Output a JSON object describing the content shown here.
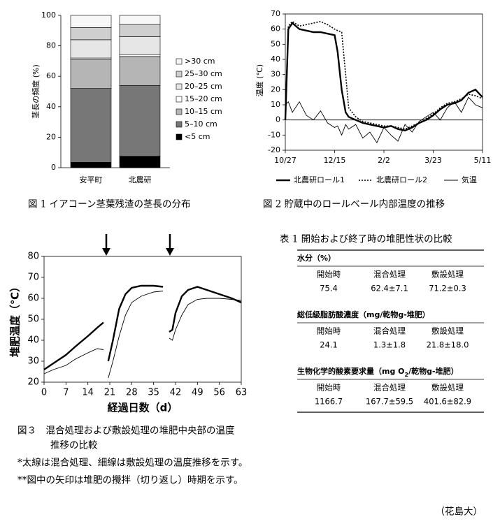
{
  "chart_data": [
    {
      "type": "bar",
      "stacked": true,
      "categories": [
        "安平町",
        "北農研"
      ],
      "y_label": "茎長の頻度 (%)",
      "ylim": [
        0,
        100
      ],
      "yticks": [
        0,
        20,
        40,
        60,
        80,
        100
      ],
      "legend": "right",
      "series": [
        {
          "name": "<5 cm",
          "color": "#000000",
          "values": [
            3.5,
            7.5
          ]
        },
        {
          "name": "5–10 cm",
          "color": "#777777",
          "values": [
            48.5,
            46.5
          ]
        },
        {
          "name": "10–15 cm",
          "color": "#b5b5b5",
          "values": [
            19,
            19
          ]
        },
        {
          "name": "15–20 cm",
          "color": "#ffffff",
          "values": [
            1,
            1
          ]
        },
        {
          "name": "20–25 cm",
          "color": "#e6e6e6",
          "values": [
            12,
            12
          ]
        },
        {
          "name": "25–30 cm",
          "color": "#cfcfcf",
          "values": [
            8,
            8
          ]
        },
        {
          "name": ">30 cm",
          "color": "#f7f7f7",
          "values": [
            8,
            6
          ]
        }
      ],
      "caption": "図 1 イアコーン茎葉残渣の茎長の分布"
    },
    {
      "type": "line",
      "y_label": "温度 (℃)",
      "ylim": [
        -20,
        70
      ],
      "yticks": [
        -20,
        -10,
        0,
        10,
        20,
        30,
        40,
        50,
        60,
        70
      ],
      "xlim": [
        0,
        196
      ],
      "xticks": [
        {
          "value": 0,
          "label": "10/27"
        },
        {
          "value": 49,
          "label": "12/15"
        },
        {
          "value": 98,
          "label": "2/2"
        },
        {
          "value": 147,
          "label": "3/23"
        },
        {
          "value": 196,
          "label": "5/11"
        }
      ],
      "legend": "bottom",
      "x": [
        0,
        3,
        7,
        14,
        21,
        28,
        35,
        42,
        49,
        52,
        56,
        60,
        63,
        70,
        77,
        84,
        91,
        98,
        105,
        112,
        119,
        126,
        133,
        140,
        147,
        154,
        161,
        168,
        175,
        182,
        189,
        196
      ],
      "series": [
        {
          "name": "北農研ロール1",
          "color": "#000000",
          "line_style": "thick",
          "values": [
            0,
            60,
            64,
            60,
            59,
            58,
            58,
            57,
            56,
            45,
            20,
            5,
            2,
            0,
            -2,
            -3,
            -4,
            -5,
            -4,
            -6,
            -7,
            -5,
            -2,
            0,
            3,
            7,
            10,
            11,
            13,
            18,
            20,
            15
          ]
        },
        {
          "name": "北農研ロール2",
          "color": "#000000",
          "line_style": "dotted",
          "values": [
            0,
            62,
            65,
            62,
            63,
            64,
            65,
            63,
            60,
            59,
            58,
            30,
            8,
            2,
            -1,
            -2,
            -3,
            -4,
            -4,
            -5,
            -6,
            -4,
            -2,
            1,
            4,
            8,
            11,
            12,
            14,
            17,
            16,
            14
          ]
        },
        {
          "name": "気温",
          "color": "#000000",
          "line_style": "thin",
          "values": [
            10,
            12,
            5,
            12,
            3,
            0,
            6,
            -2,
            -5,
            -4,
            -10,
            -3,
            -6,
            -3,
            -12,
            -8,
            -15,
            -5,
            -10,
            -14,
            -3,
            -8,
            -1,
            2,
            5,
            0,
            8,
            12,
            5,
            15,
            10,
            8
          ]
        }
      ],
      "caption": "図 2 貯蔵中のロールベール内部温度の推移"
    },
    {
      "type": "line",
      "y_label": "堆肥温度（℃）",
      "x_label": "経過日数（d）",
      "ylim": [
        20,
        80
      ],
      "yticks": [
        20,
        30,
        40,
        50,
        60,
        70,
        80
      ],
      "xlim": [
        0,
        63
      ],
      "xticks": [
        0,
        7,
        14,
        21,
        28,
        35,
        42,
        49,
        56,
        63
      ],
      "x": [
        0,
        3,
        7,
        10,
        14,
        17,
        19,
        20,
        20.5,
        22,
        24,
        26,
        28,
        31,
        35,
        38,
        39,
        40,
        41,
        42,
        44,
        46,
        49,
        52,
        56,
        60,
        63
      ],
      "series": [
        {
          "color": "#000000",
          "line_style": "thick",
          "values": [
            26,
            29,
            33,
            37,
            42,
            46,
            48.5,
            null,
            30,
            40,
            55,
            62,
            65,
            66,
            66,
            65.5,
            null,
            44,
            45,
            53,
            61,
            64,
            65.5,
            64,
            62,
            60,
            58
          ]
        },
        {
          "color": "#000000",
          "line_style": "thin",
          "values": [
            24,
            26,
            28,
            31,
            34,
            36,
            35.5,
            null,
            22,
            30,
            42,
            52,
            58,
            61,
            63,
            63.5,
            null,
            41,
            40,
            45,
            52,
            57,
            59.5,
            60,
            60,
            59.5,
            59
          ]
        }
      ],
      "caption": [
        "図３　混合処理および敷設処理の堆肥中央部の温度",
        "推移の比較"
      ],
      "notes": [
        "*太線は混合処理、細線は敷設処理の温度推移を示す。",
        "**図中の矢印は堆肥の攪拌（切り返し）時期を示す。"
      ]
    }
  ],
  "table": {
    "title": "表 1 開始および終了時の堆肥性状の比較",
    "sections": [
      {
        "heading": [
          "水分（%）"
        ],
        "columns": [
          "開始時",
          "混合処理",
          "敷設処理"
        ],
        "values": [
          "75.4",
          "62.4±7.1",
          "71.2±0.3"
        ]
      },
      {
        "heading": [
          "総低級脂肪酸濃度（mg/乾物g-堆肥）"
        ],
        "columns": [
          "開始時",
          "混合処理",
          "敷設処理"
        ],
        "values": [
          "24.1",
          "1.3±1.8",
          "21.8±18.0"
        ]
      },
      {
        "heading": [
          "生物化学的酸素要求量（mg O",
          "2",
          "/乾物g-堆肥）"
        ],
        "columns": [
          "開始時",
          "混合処理",
          "敷設処理"
        ],
        "values": [
          "1166.7",
          "167.7±59.5",
          "401.6±82.9"
        ]
      }
    ]
  },
  "author": "（花島大）"
}
